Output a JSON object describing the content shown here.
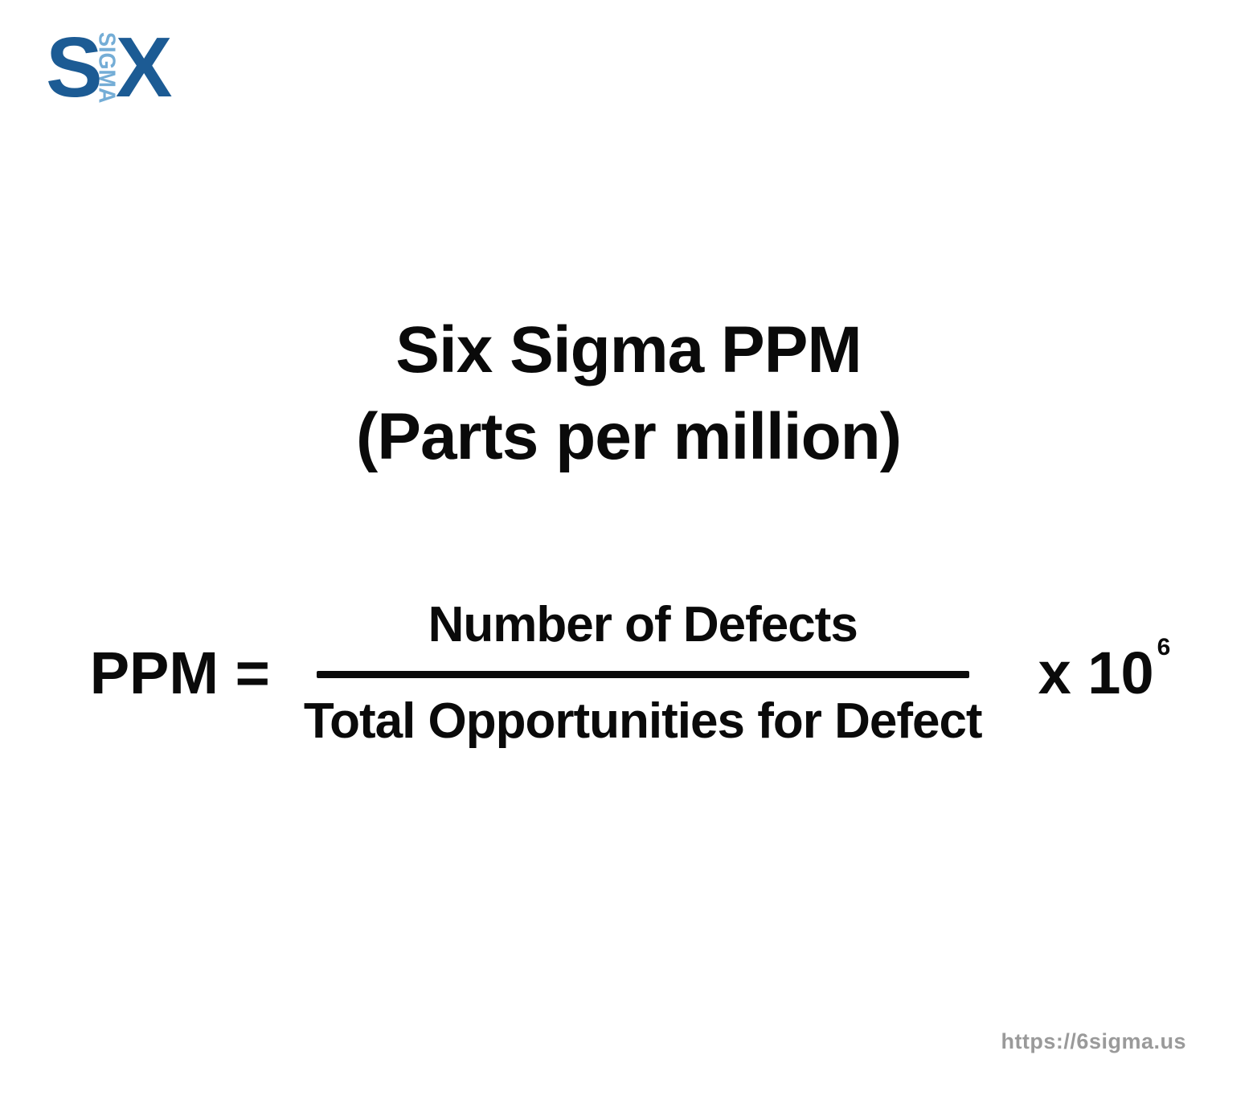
{
  "logo": {
    "word_start": "S",
    "vertical_text": "SIGMA",
    "word_end": "X"
  },
  "title": {
    "line1": "Six Sigma PPM",
    "line2": "(Parts per million)"
  },
  "formula": {
    "lhs": "PPM =",
    "numerator": "Number of Defects",
    "denominator": "Total Opportunities for Defect",
    "multiplier": "x 10",
    "exponent": "6"
  },
  "footer": {
    "url": "https://6sigma.us"
  },
  "colors": {
    "logo_dark": "#1c5b94",
    "logo_light": "#74add6",
    "text": "#0a0a0a",
    "footer": "#9a9a9a",
    "background": "#ffffff"
  }
}
